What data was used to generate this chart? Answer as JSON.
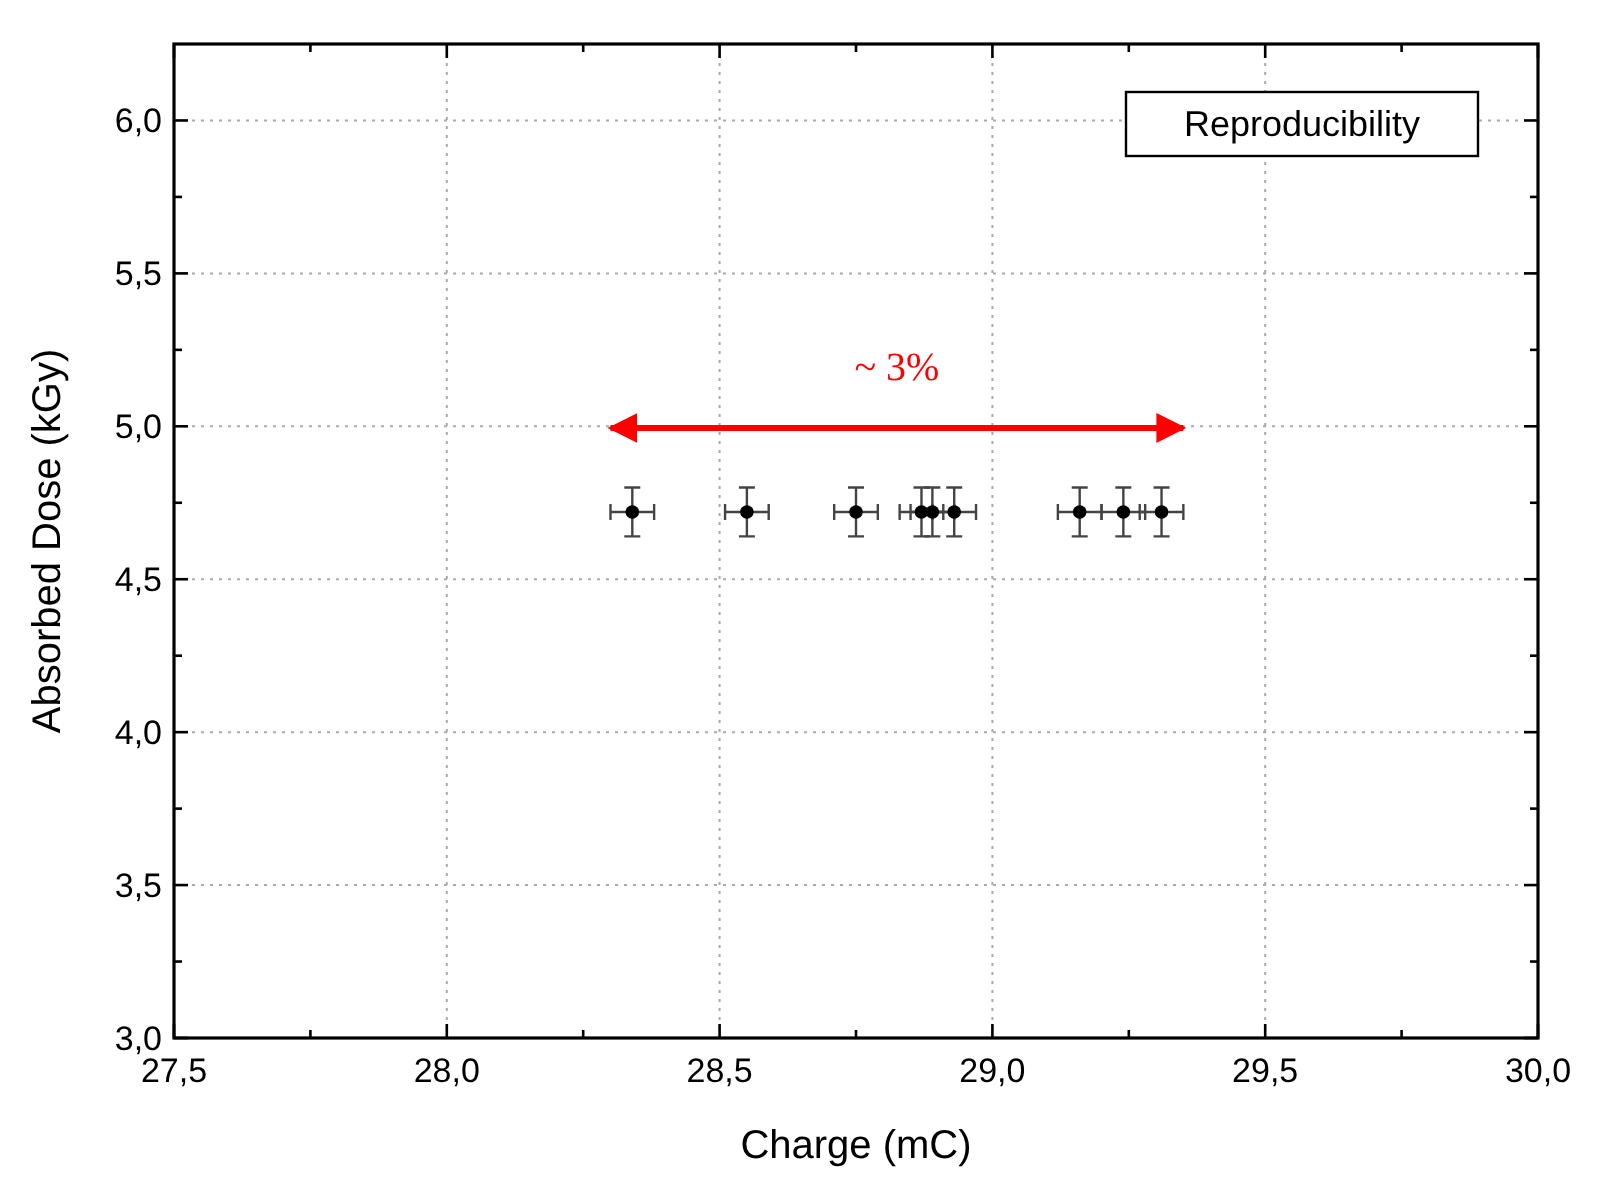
{
  "chart_data": {
    "type": "scatter",
    "xlabel": "Charge (mC)",
    "ylabel": "Absorbed Dose (kGy)",
    "x": [
      28.34,
      28.55,
      28.75,
      28.87,
      28.89,
      28.93,
      29.16,
      29.24,
      29.31
    ],
    "series": [
      {
        "color": "#000000",
        "values": [
          4.72,
          4.72,
          4.72,
          4.72,
          4.72,
          4.72,
          4.72,
          4.72,
          4.72
        ],
        "errors": [
          0.08,
          0.08,
          0.08,
          0.08,
          0.08,
          0.08,
          0.08,
          0.08,
          0.08
        ],
        "xerrors": [
          0.04,
          0.04,
          0.04,
          0.04,
          0.04,
          0.04,
          0.04,
          0.04,
          0.04
        ]
      }
    ],
    "xlim": [
      27.5,
      30.0
    ],
    "xticks": [
      {
        "value": 27.5,
        "label": "27,5"
      },
      {
        "value": 28,
        "label": "28,0"
      },
      {
        "value": 28.5,
        "label": "28,5"
      },
      {
        "value": 29,
        "label": "29,0"
      },
      {
        "value": 29.5,
        "label": "29,5"
      },
      {
        "value": 30,
        "label": "30,0"
      }
    ],
    "ylim": [
      3.0,
      6.25
    ],
    "yticks": [
      {
        "value": 3,
        "label": "3,0"
      },
      {
        "value": 3.5,
        "label": "3,5"
      },
      {
        "value": 4,
        "label": "4,0"
      },
      {
        "value": 4.5,
        "label": "4,5"
      },
      {
        "value": 5,
        "label": "5,0"
      },
      {
        "value": 5.5,
        "label": "5,5"
      },
      {
        "value": 6,
        "label": "6,0"
      }
    ],
    "grid": true,
    "marker": "circle",
    "annotations": [
      "~ 3%",
      "Reproducibility"
    ]
  }
}
